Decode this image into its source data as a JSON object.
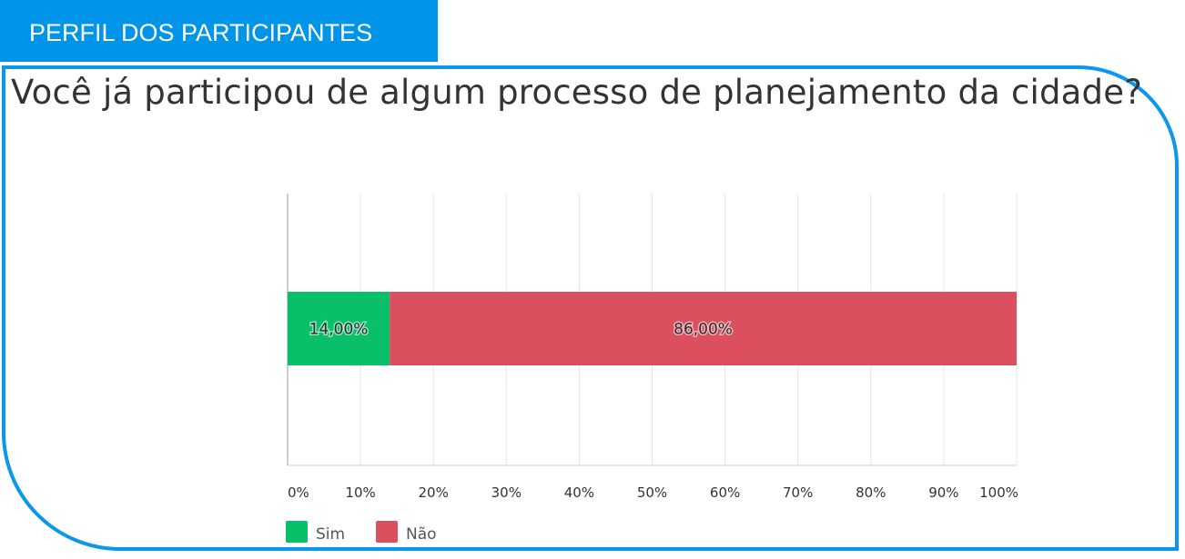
{
  "banner": {
    "text": "PERFIL DOS PARTICIPANTES"
  },
  "chart_data": {
    "type": "bar",
    "orientation": "horizontal",
    "stacked": true,
    "title": "Você já participou de algum processo de planejamento da cidade?",
    "categories": [
      ""
    ],
    "series": [
      {
        "name": "Sim",
        "values": [
          14
        ],
        "label": "14,00%",
        "color": "#0abf6a"
      },
      {
        "name": "Não",
        "values": [
          86
        ],
        "label": "86,00%",
        "color": "#db4f5f"
      }
    ],
    "xlim": [
      0,
      100
    ],
    "xticks": [
      "0%",
      "10%",
      "20%",
      "30%",
      "40%",
      "50%",
      "60%",
      "70%",
      "80%",
      "90%",
      "100%"
    ],
    "grid": true,
    "legend": "bottom-left"
  }
}
